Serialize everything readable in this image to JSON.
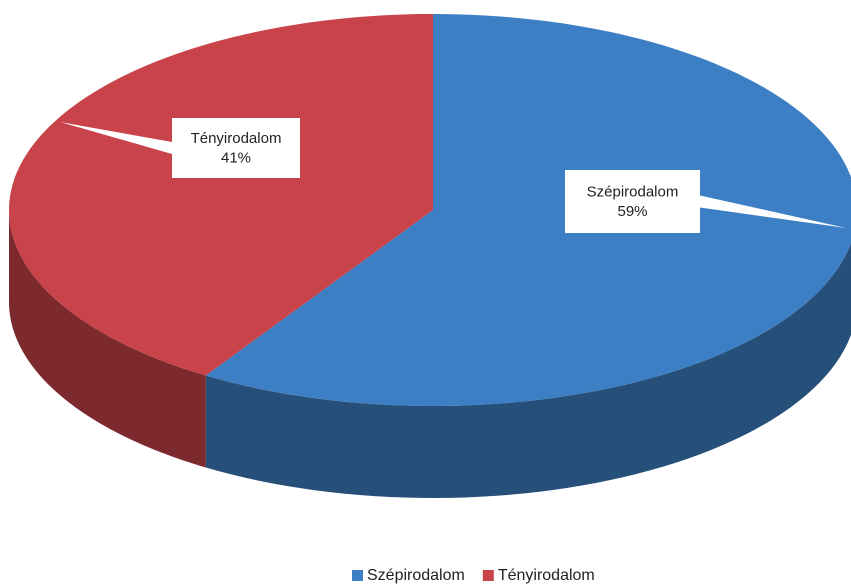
{
  "chart_data": {
    "type": "pie3d",
    "categories": [
      "Szépirodalom",
      "Tényirodalom"
    ],
    "values": [
      59,
      41
    ],
    "value_labels": [
      "59%",
      "41%"
    ],
    "colors": [
      "#3d7fc4",
      "#c9434b"
    ],
    "legend": "bottom"
  }
}
